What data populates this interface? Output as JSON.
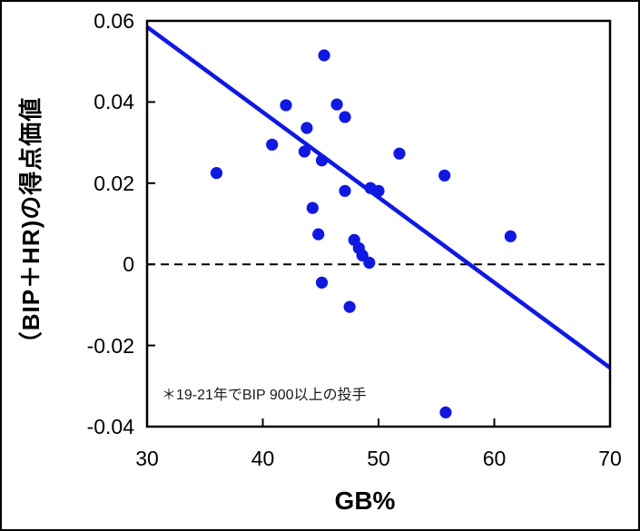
{
  "figure": {
    "background_color": "#ffffff",
    "frame_color": "#000000",
    "accent_blue": "#1018e2"
  },
  "chart_data": {
    "type": "scatter",
    "title": "",
    "xlabel": "GB%",
    "ylabel": "（BIP＋HR)の得点価値",
    "annotation": "＊19-21年でBIP 900以上の投手",
    "xlim": [
      30,
      70
    ],
    "ylim": [
      -0.04,
      0.06
    ],
    "grid": false,
    "legend": null,
    "x_ticks": [
      30,
      40,
      50,
      60,
      70
    ],
    "x_tick_labels": [
      "30",
      "40",
      "50",
      "60",
      "70"
    ],
    "x_inner_ticks": [
      40,
      50,
      60
    ],
    "y_ticks": [
      0.06,
      0.04,
      0.02,
      0,
      -0.02,
      -0.04
    ],
    "y_tick_labels": [
      "0.06",
      "0.04",
      "0.02",
      "0",
      "-0.02",
      "-0.04"
    ],
    "y_inner_ticks": [
      0.04,
      0.02,
      0,
      -0.02
    ],
    "zero_line": {
      "y": 0,
      "style": "dashed",
      "color": "#000000"
    },
    "trend_line": {
      "x1": 30,
      "y1": 0.0585,
      "x2": 70,
      "y2": -0.0255,
      "color": "#1018e2"
    },
    "series": [
      {
        "name": "pitchers",
        "color": "#1018e2",
        "points": [
          [
            36.0,
            0.0225
          ],
          [
            40.8,
            0.0295
          ],
          [
            42.0,
            0.0392
          ],
          [
            43.6,
            0.0278
          ],
          [
            43.8,
            0.0336
          ],
          [
            44.3,
            0.0139
          ],
          [
            44.8,
            0.0074
          ],
          [
            45.1,
            0.0256
          ],
          [
            45.3,
            0.0515
          ],
          [
            45.1,
            -0.0045
          ],
          [
            46.4,
            0.0394
          ],
          [
            47.1,
            0.0363
          ],
          [
            47.1,
            0.0181
          ],
          [
            47.5,
            -0.0105
          ],
          [
            47.9,
            0.006
          ],
          [
            48.3,
            0.004
          ],
          [
            48.6,
            0.0022
          ],
          [
            49.2,
            0.0004
          ],
          [
            49.3,
            0.0188
          ],
          [
            50.0,
            0.0181
          ],
          [
            51.8,
            0.0273
          ],
          [
            55.7,
            0.0219
          ],
          [
            55.8,
            -0.0365
          ],
          [
            61.4,
            0.0069
          ]
        ]
      }
    ]
  }
}
